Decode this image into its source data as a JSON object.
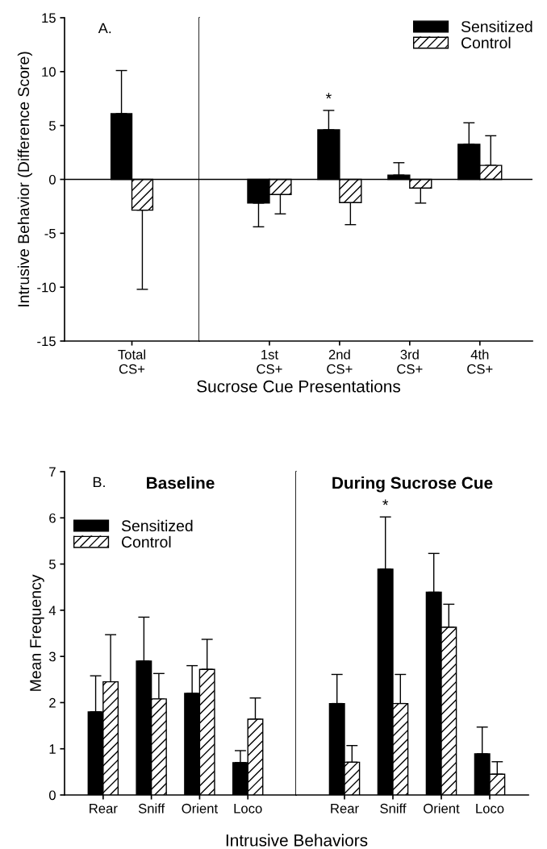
{
  "chart_data": [
    {
      "type": "bar",
      "ylabel": "Intrusive Behavior (Difference Score)",
      "categories": [
        "Total\nCS+"
      ],
      "ylim": [
        -15,
        15
      ],
      "yticks": [
        -15,
        -10,
        -5,
        0,
        5,
        10,
        15
      ],
      "series": [
        {
          "color": "#000000",
          "values": [
            6.1
          ],
          "errors": [
            [
              6.1,
              10.1
            ]
          ]
        },
        {
          "color": "#ffffff",
          "values": [
            -2.85
          ],
          "errors": [
            [
              -10.2,
              -2.85
            ]
          ]
        }
      ],
      "ref_lines": [
        {
          "axis": "y",
          "value": 0
        }
      ],
      "annotations": [
        "A."
      ]
    },
    {
      "type": "bar",
      "xlabel": "Sucrose Cue Presentations",
      "categories": [
        "1st\nCS+",
        "2nd\nCS+",
        "3rd\nCS+",
        "4th\nCS+"
      ],
      "ylim": [
        -15,
        15
      ],
      "tick_labels": "x",
      "series": [
        {
          "name": "Sensitized",
          "color": "#000000",
          "values": [
            -2.2,
            4.6,
            0.4,
            3.25
          ],
          "errors": [
            [
              -4.4,
              -2.2
            ],
            [
              4.6,
              6.4
            ],
            [
              0.4,
              1.55
            ],
            [
              3.25,
              5.25
            ]
          ]
        },
        {
          "name": "Control",
          "color": "#ffffff",
          "values": [
            -1.4,
            -2.15,
            -0.8,
            1.3
          ],
          "errors": [
            [
              -3.2,
              -1.4
            ],
            [
              -4.2,
              -2.15
            ],
            [
              -2.2,
              -0.8
            ],
            [
              1.3,
              4.05
            ]
          ]
        }
      ],
      "ref_lines": [
        {
          "axis": "y",
          "value": 0
        }
      ],
      "legend": "top right",
      "annotations": [
        "*"
      ]
    },
    {
      "type": "bar",
      "title": "Baseline",
      "ylabel": "Mean Frequency",
      "categories": [
        "Rear",
        "Sniff",
        "Orient",
        "Loco"
      ],
      "ylim": [
        0,
        7
      ],
      "yticks": [
        0,
        1,
        2,
        3,
        4,
        5,
        6,
        7
      ],
      "series": [
        {
          "name": "Sensitized",
          "color": "#000000",
          "values": [
            1.8,
            2.9,
            2.2,
            0.7
          ],
          "errors": [
            [
              1.8,
              2.58
            ],
            [
              2.9,
              3.85
            ],
            [
              2.2,
              2.8
            ],
            [
              0.7,
              0.96
            ]
          ]
        },
        {
          "name": "Control",
          "color": "#ffffff",
          "values": [
            2.45,
            2.08,
            2.72,
            1.64
          ],
          "errors": [
            [
              2.45,
              3.47
            ],
            [
              2.08,
              2.63
            ],
            [
              2.72,
              3.37
            ],
            [
              1.64,
              2.1
            ]
          ]
        }
      ],
      "legend": "top left",
      "annotations": [
        "B."
      ]
    },
    {
      "type": "bar",
      "title": "During Sucrose Cue",
      "xlabel": "Intrusive Behaviors",
      "categories": [
        "Rear",
        "Sniff",
        "Orient",
        "Loco"
      ],
      "ylim": [
        0,
        7
      ],
      "tick_labels": "x",
      "series": [
        {
          "color": "#000000",
          "values": [
            1.98,
            4.89,
            4.39,
            0.89
          ],
          "errors": [
            [
              1.98,
              2.61
            ],
            [
              4.89,
              6.02
            ],
            [
              4.39,
              5.23
            ],
            [
              0.89,
              1.47
            ]
          ]
        },
        {
          "color": "#ffffff",
          "values": [
            0.71,
            1.98,
            3.63,
            0.45
          ],
          "errors": [
            [
              0.71,
              1.07
            ],
            [
              1.98,
              2.61
            ],
            [
              3.63,
              4.13
            ],
            [
              0.45,
              0.72
            ]
          ]
        }
      ],
      "annotations": [
        "*"
      ]
    }
  ]
}
